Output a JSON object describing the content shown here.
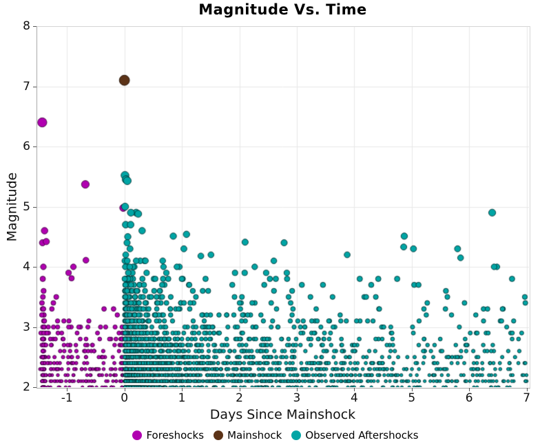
{
  "title": "Magnitude Vs. Time",
  "legend": [
    {
      "label": "Foreshocks",
      "color": "#b100b1"
    },
    {
      "label": "Mainshock",
      "color": "#5c3317"
    },
    {
      "label": "Observed Aftershocks",
      "color": "#00a5a5"
    }
  ],
  "chart_data": {
    "type": "scatter",
    "title": "Magnitude Vs. Time",
    "xlabel": "Days Since Mainshock",
    "ylabel": "Magnitude",
    "xlim": [
      -1.53,
      7.04
    ],
    "ylim": [
      2,
      8
    ],
    "xticks": [
      -1,
      0,
      1,
      2,
      3,
      4,
      5,
      6,
      7
    ],
    "yticks": [
      2,
      3,
      4,
      5,
      6,
      7,
      8
    ],
    "grid": true,
    "grid_color": "#e8e8e8",
    "background": "#ffffff",
    "legend_position": "bottom",
    "magnitude_bin": 0.1,
    "marker_size_rule": {
      "radius_at_mag2": 2.05,
      "radius_per_mag": 1.05
    },
    "series": [
      {
        "name": "Foreshocks",
        "marker": {
          "fill": "#b100b1",
          "edge": "rgba(58,0,58,0.85)"
        },
        "points": [
          [
            -1.43,
            6.4
          ],
          [
            -0.68,
            5.37
          ],
          [
            -0.02,
            4.98
          ],
          [
            -1.39,
            4.6
          ],
          [
            -1.36,
            4.42
          ],
          [
            -0.67,
            4.11
          ],
          [
            -0.92,
            3.81
          ]
        ],
        "clusters": [
          {
            "kind": "band",
            "n": 150,
            "x_center": -1.41,
            "x_spread": 0.015,
            "mag_min": 2.0,
            "mag_cap": 4.55,
            "b": 0.9,
            "seed": 11
          },
          {
            "kind": "uniform",
            "n": 215,
            "x_min": -1.44,
            "x_max": -0.03,
            "mag_min": 2.0,
            "cap_base": 3.35,
            "cap_slope": 1.2,
            "b": 0.95,
            "seed": 22
          },
          {
            "kind": "band",
            "n": 30,
            "x_center": -0.035,
            "x_spread": 0.018,
            "mag_min": 2.0,
            "mag_cap": 3.3,
            "b": 1.0,
            "seed": 33
          }
        ]
      },
      {
        "name": "Mainshock",
        "marker": {
          "fill": "#5c3317",
          "edge": "rgba(30,15,5,0.9)"
        },
        "points": [
          [
            0.0,
            7.1
          ]
        ]
      },
      {
        "name": "Observed Aftershocks",
        "marker": {
          "fill": "#00a5a5",
          "edge": "rgba(0,45,45,0.85)"
        },
        "points": [
          [
            0.01,
            5.52
          ],
          [
            0.03,
            5.45
          ],
          [
            0.05,
            5.43
          ],
          [
            6.4,
            4.9
          ],
          [
            0.24,
            4.88
          ],
          [
            1.08,
            4.54
          ],
          [
            0.85,
            4.51
          ],
          [
            4.87,
            4.51
          ],
          [
            4.86,
            4.33
          ],
          [
            5.03,
            4.3
          ],
          [
            2.1,
            4.41
          ],
          [
            5.85,
            4.15
          ],
          [
            1.33,
            4.18
          ]
        ],
        "clusters": [
          {
            "kind": "omori",
            "n": 3200,
            "c": 0.045,
            "t_min": 0.004,
            "t_max": 7.0,
            "mag_min": 2.0,
            "b": 0.92,
            "cap_base": 4.45,
            "cap_amp": 1.05,
            "cap_tau": 0.3,
            "seed": 44
          }
        ]
      }
    ]
  }
}
